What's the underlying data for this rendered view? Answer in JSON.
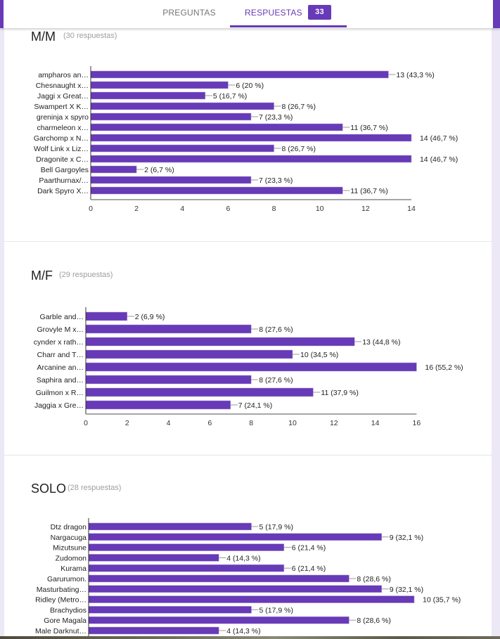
{
  "tabs": {
    "preguntas": "PREGUNTAS",
    "respuestas": "RESPUESTAS",
    "respuestas_count": "33"
  },
  "colors": {
    "accent": "#673ab7",
    "bar": "#673ab7"
  },
  "questions": [
    {
      "title": "M/M",
      "count_label": "(30 respuestas)"
    },
    {
      "title": "M/F",
      "count_label": "(29 respuestas)"
    },
    {
      "title": "SOLO",
      "count_label": "(28 respuestas)"
    }
  ],
  "chart_data": [
    {
      "type": "bar",
      "orientation": "horizontal",
      "title": "M/M",
      "categories": [
        "ampharos an…",
        "Chesnaught x…",
        "Jaggi x Great…",
        "Swampert X K…",
        "greninja x spyro",
        "charmeleon x…",
        "Garchomp x N…",
        "Wolf Link x Liz…",
        "Dragonite x C…",
        "Bell Gargoyles",
        "Paarthurnax/…",
        "Dark Spyro X…"
      ],
      "values": [
        13,
        6,
        5,
        8,
        7,
        11,
        14,
        8,
        14,
        2,
        7,
        11
      ],
      "labels": [
        "13 (43,3 %)",
        "6 (20 %)",
        "5 (16,7 %)",
        "8 (26,7 %)",
        "7 (23,3 %)",
        "11 (36,7 %)",
        "14 (46,7 %)",
        "8 (26,7 %)",
        "14 (46,7 %)",
        "2 (6,7 %)",
        "7 (23,3 %)",
        "11 (36,7 %)"
      ],
      "xlim": [
        0,
        14
      ],
      "ticks": [
        "0",
        "2",
        "4",
        "6",
        "8",
        "10",
        "12",
        "14"
      ]
    },
    {
      "type": "bar",
      "orientation": "horizontal",
      "title": "M/F",
      "categories": [
        "Garble and…",
        "Grovyle M x…",
        "cynder x rath…",
        "Charr and T…",
        "Arcanine an…",
        "Saphira and…",
        "Guilmon x R…",
        "Jaggia x Gre…"
      ],
      "values": [
        2,
        8,
        13,
        10,
        16,
        8,
        11,
        7
      ],
      "labels": [
        "2 (6,9 %)",
        "8 (27,6 %)",
        "13 (44,8 %)",
        "10 (34,5 %)",
        "16 (55,2 %)",
        "8 (27,6 %)",
        "11 (37,9 %)",
        "7 (24,1 %)"
      ],
      "xlim": [
        0,
        16
      ],
      "ticks": [
        "0",
        "2",
        "4",
        "6",
        "8",
        "10",
        "12",
        "14",
        "16"
      ]
    },
    {
      "type": "bar",
      "orientation": "horizontal",
      "title": "SOLO",
      "categories": [
        "Dtz dragon",
        "Nargacuga",
        "Mizutsune",
        "Zudomon",
        "Kurama",
        "Garurumon.",
        "Masturbating…",
        "Ridley (Metro…",
        "Brachydios",
        "Gore Magala",
        "Male Darknut…"
      ],
      "values": [
        5,
        9,
        6,
        4,
        6,
        8,
        9,
        10,
        5,
        8,
        4
      ],
      "labels": [
        "5 (17,9 %)",
        "9 (32,1 %)",
        "6 (21,4 %)",
        "4 (14,3 %)",
        "6 (21,4 %)",
        "8 (28,6 %)",
        "9 (32,1 %)",
        "10 (35,7 %)",
        "5 (17,9 %)",
        "8 (28,6 %)",
        "4 (14,3 %)"
      ],
      "xlim": [
        0,
        10
      ]
    }
  ]
}
